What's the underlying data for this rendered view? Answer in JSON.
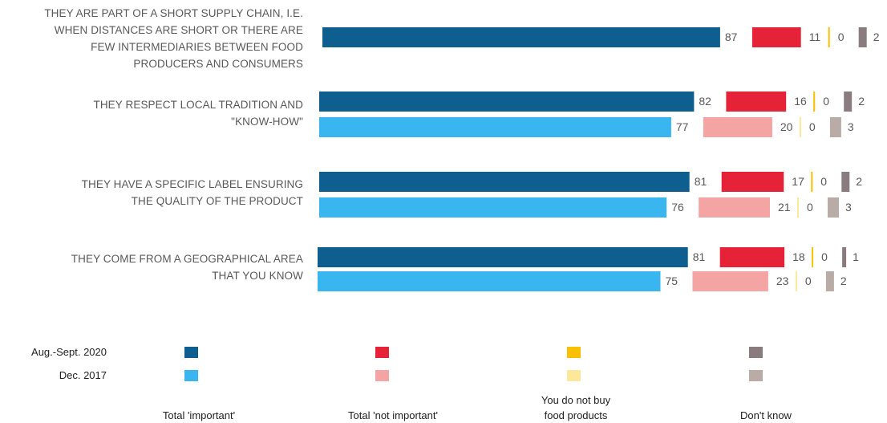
{
  "chart_data": {
    "type": "bar",
    "orientation": "horizontal",
    "categories": [
      "They are part of a short supply chain, i.e. when distances are short or there are few intermediaries between food producers and consumers",
      "They respect local tradition and \"know-how\"",
      "They have a specific label ensuring the quality of the product",
      "They come from a geographical area that you know"
    ],
    "category_lines": [
      [
        "THEY ARE PART OF A SHORT SUPPLY CHAIN, I.E.",
        "WHEN DISTANCES ARE SHORT OR THERE ARE",
        "FEW INTERMEDIARIES BETWEEN FOOD",
        "PRODUCERS AND CONSUMERS"
      ],
      [
        "THEY RESPECT LOCAL TRADITION AND",
        "\"KNOW-HOW\""
      ],
      [
        "THEY HAVE A SPECIFIC LABEL ENSURING",
        "THE QUALITY OF THE PRODUCT"
      ],
      [
        "THEY COME FROM A GEOGRAPHICAL AREA",
        "THAT YOU KNOW"
      ]
    ],
    "periods": [
      "Aug.-Sept. 2020",
      "Dec. 2017"
    ],
    "answer_categories": [
      "Total 'important'",
      "Total 'not important'",
      "You do not buy food products",
      "Don't know"
    ],
    "series": [
      {
        "name": "Aug.-Sept. 2020",
        "values": [
          [
            87,
            11,
            0,
            2
          ],
          [
            82,
            16,
            0,
            2
          ],
          [
            81,
            17,
            0,
            2
          ],
          [
            81,
            18,
            0,
            1
          ]
        ]
      },
      {
        "name": "Dec. 2017",
        "values": [
          null,
          [
            77,
            20,
            0,
            3
          ],
          [
            76,
            21,
            0,
            3
          ],
          [
            75,
            23,
            0,
            2
          ]
        ]
      }
    ],
    "colors": {
      "Aug.-Sept. 2020": [
        "#0e5f8f",
        "#e52237",
        "#f9c000",
        "#8a7b7f"
      ],
      "Dec. 2017": [
        "#39b5ef",
        "#f4a5a3",
        "#fde79a",
        "#b9aca6"
      ]
    },
    "legend_position": "bottom"
  }
}
